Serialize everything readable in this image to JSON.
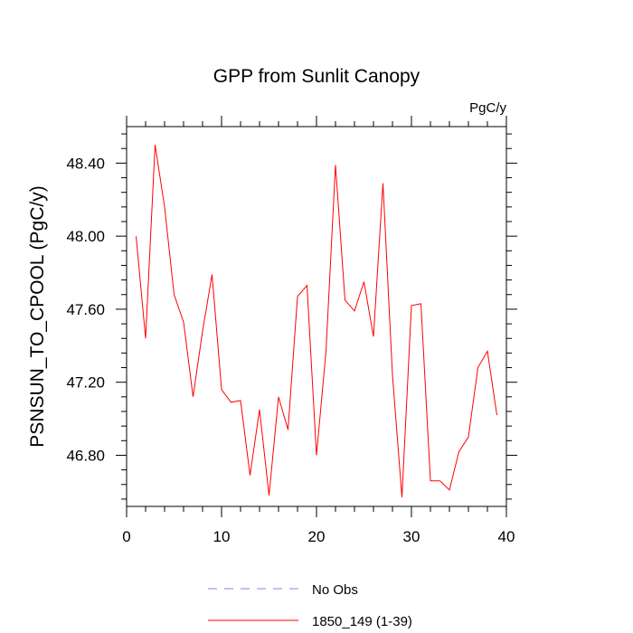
{
  "chart_data": {
    "type": "line",
    "title": "GPP from Sunlit Canopy",
    "units_label": "PgC/y",
    "ylabel": "PSNSUN_TO_CPOOL  (PgC/y)",
    "xlabel": "",
    "xlim": [
      0,
      40
    ],
    "ylim": [
      46.52,
      48.6
    ],
    "x_ticks": [
      0,
      10,
      20,
      30,
      40
    ],
    "x_tick_labels": [
      "0",
      "10",
      "20",
      "30",
      "40"
    ],
    "y_ticks": [
      46.8,
      47.2,
      47.6,
      48.0,
      48.4
    ],
    "y_tick_labels": [
      "46.80",
      "47.20",
      "47.60",
      "48.00",
      "48.40"
    ],
    "grid": false,
    "legend_position": "bottom",
    "series": [
      {
        "name": "No Obs",
        "color": "#8080ff",
        "dash": "dashed",
        "x": [],
        "y": []
      },
      {
        "name": "1850_149 (1-39)",
        "color": "#ff0000",
        "dash": "solid",
        "x": [
          1,
          2,
          3,
          4,
          5,
          6,
          7,
          8,
          9,
          10,
          11,
          12,
          13,
          14,
          15,
          16,
          17,
          18,
          19,
          20,
          21,
          22,
          23,
          24,
          25,
          26,
          27,
          28,
          29,
          30,
          31,
          32,
          33,
          34,
          35,
          36,
          37,
          38,
          39
        ],
        "y": [
          48.0,
          47.44,
          48.5,
          48.16,
          47.68,
          47.53,
          47.12,
          47.48,
          47.79,
          47.16,
          47.09,
          47.1,
          46.69,
          47.05,
          46.58,
          47.12,
          46.94,
          47.67,
          47.73,
          46.8,
          47.37,
          48.39,
          47.65,
          47.59,
          47.75,
          47.45,
          48.29,
          47.24,
          46.57,
          47.62,
          47.63,
          46.66,
          46.66,
          46.61,
          46.82,
          46.9,
          47.28,
          47.37,
          47.02
        ]
      }
    ]
  }
}
